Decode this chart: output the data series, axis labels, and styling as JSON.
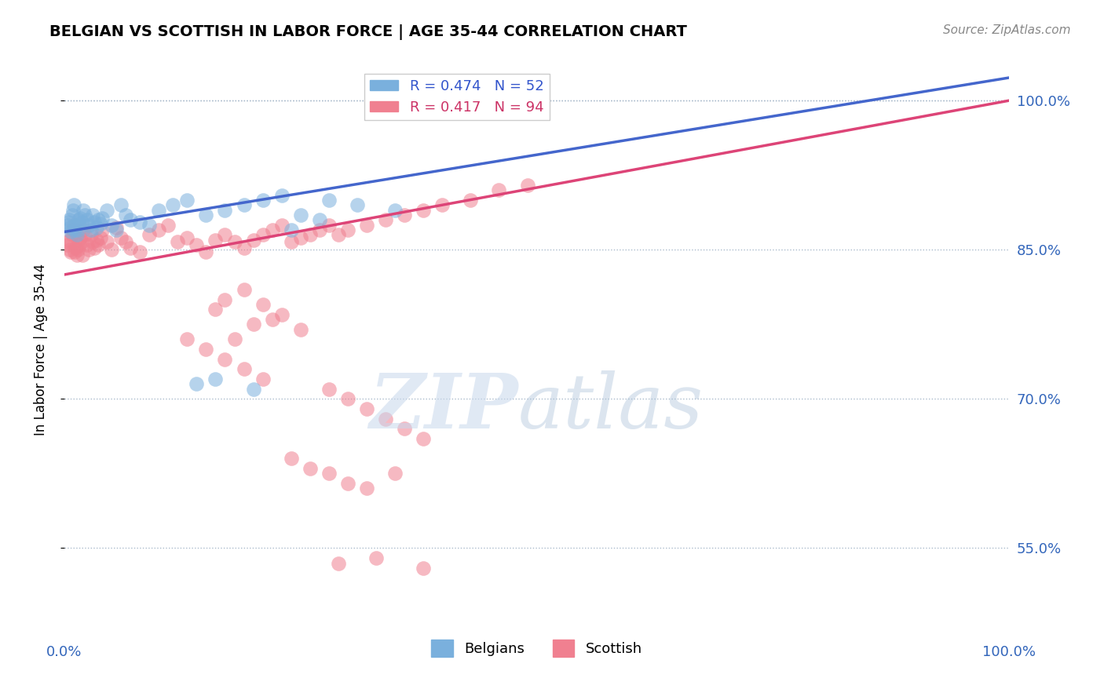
{
  "title": "BELGIAN VS SCOTTISH IN LABOR FORCE | AGE 35-44 CORRELATION CHART",
  "source_text": "Source: ZipAtlas.com",
  "ylabel": "In Labor Force | Age 35-44",
  "xlim": [
    0.0,
    1.0
  ],
  "ylim": [
    0.46,
    1.04
  ],
  "yticks": [
    0.55,
    0.7,
    0.85,
    1.0
  ],
  "ytick_labels": [
    "55.0%",
    "70.0%",
    "85.0%",
    "100.0%"
  ],
  "belgian_color": "#7ab0dd",
  "scottish_color": "#f08090",
  "trendline_blue": "#4466cc",
  "trendline_pink": "#dd4477",
  "belgian_x": [
    0.003,
    0.004,
    0.005,
    0.006,
    0.007,
    0.008,
    0.009,
    0.01,
    0.011,
    0.012,
    0.013,
    0.014,
    0.015,
    0.016,
    0.017,
    0.018,
    0.02,
    0.022,
    0.024,
    0.026,
    0.028,
    0.03,
    0.032,
    0.034,
    0.036,
    0.038,
    0.04,
    0.045,
    0.05,
    0.055,
    0.06,
    0.065,
    0.07,
    0.08,
    0.09,
    0.1,
    0.115,
    0.13,
    0.15,
    0.17,
    0.19,
    0.21,
    0.23,
    0.25,
    0.28,
    0.31,
    0.35,
    0.14,
    0.16,
    0.2,
    0.24,
    0.27
  ],
  "belgian_y": [
    0.875,
    0.878,
    0.88,
    0.872,
    0.868,
    0.885,
    0.89,
    0.895,
    0.87,
    0.875,
    0.865,
    0.87,
    0.88,
    0.876,
    0.882,
    0.878,
    0.89,
    0.885,
    0.88,
    0.875,
    0.87,
    0.885,
    0.878,
    0.872,
    0.88,
    0.876,
    0.882,
    0.89,
    0.875,
    0.87,
    0.895,
    0.885,
    0.88,
    0.878,
    0.875,
    0.89,
    0.895,
    0.9,
    0.885,
    0.89,
    0.895,
    0.9,
    0.905,
    0.885,
    0.9,
    0.895,
    0.89,
    0.715,
    0.72,
    0.71,
    0.87,
    0.88
  ],
  "scottish_x": [
    0.003,
    0.004,
    0.005,
    0.006,
    0.007,
    0.008,
    0.009,
    0.01,
    0.011,
    0.012,
    0.013,
    0.014,
    0.015,
    0.016,
    0.017,
    0.018,
    0.019,
    0.02,
    0.022,
    0.024,
    0.026,
    0.028,
    0.03,
    0.032,
    0.034,
    0.036,
    0.038,
    0.04,
    0.045,
    0.05,
    0.055,
    0.06,
    0.065,
    0.07,
    0.08,
    0.09,
    0.1,
    0.11,
    0.12,
    0.13,
    0.14,
    0.15,
    0.16,
    0.17,
    0.18,
    0.19,
    0.2,
    0.21,
    0.22,
    0.23,
    0.24,
    0.25,
    0.26,
    0.27,
    0.28,
    0.29,
    0.3,
    0.32,
    0.34,
    0.36,
    0.38,
    0.4,
    0.43,
    0.46,
    0.49,
    0.17,
    0.19,
    0.21,
    0.16,
    0.23,
    0.25,
    0.18,
    0.2,
    0.22,
    0.13,
    0.15,
    0.17,
    0.19,
    0.21,
    0.28,
    0.3,
    0.32,
    0.34,
    0.36,
    0.38,
    0.24,
    0.26,
    0.28,
    0.3,
    0.32,
    0.35,
    0.38,
    0.33,
    0.29
  ],
  "scottish_y": [
    0.855,
    0.858,
    0.86,
    0.85,
    0.848,
    0.865,
    0.87,
    0.875,
    0.848,
    0.852,
    0.845,
    0.85,
    0.86,
    0.855,
    0.862,
    0.858,
    0.845,
    0.87,
    0.865,
    0.855,
    0.85,
    0.865,
    0.858,
    0.852,
    0.86,
    0.855,
    0.862,
    0.87,
    0.858,
    0.85,
    0.872,
    0.862,
    0.858,
    0.852,
    0.848,
    0.865,
    0.87,
    0.875,
    0.858,
    0.862,
    0.855,
    0.848,
    0.86,
    0.865,
    0.858,
    0.852,
    0.86,
    0.865,
    0.87,
    0.875,
    0.858,
    0.862,
    0.865,
    0.87,
    0.875,
    0.865,
    0.87,
    0.875,
    0.88,
    0.885,
    0.89,
    0.895,
    0.9,
    0.91,
    0.915,
    0.8,
    0.81,
    0.795,
    0.79,
    0.785,
    0.77,
    0.76,
    0.775,
    0.78,
    0.76,
    0.75,
    0.74,
    0.73,
    0.72,
    0.71,
    0.7,
    0.69,
    0.68,
    0.67,
    0.66,
    0.64,
    0.63,
    0.625,
    0.615,
    0.61,
    0.625,
    0.53,
    0.54,
    0.535
  ]
}
